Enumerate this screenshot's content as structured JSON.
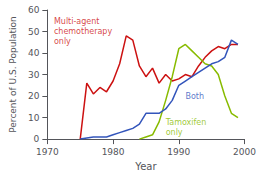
{
  "chart_data": {
    "type": "line",
    "xlabel": "Year",
    "ylabel": "Percent of U.S. Population",
    "xlim": [
      1970,
      2000
    ],
    "ylim": [
      0,
      60
    ],
    "xticks": [
      1970,
      1980,
      1990,
      2000
    ],
    "yticks": [
      0,
      10,
      20,
      30,
      40,
      50,
      60
    ],
    "grid": false,
    "series": [
      {
        "color": "#cc1111",
        "x": [
          1975,
          1976,
          1977,
          1978,
          1979,
          1980,
          1981,
          1982,
          1983,
          1984,
          1985,
          1986,
          1987,
          1988,
          1989,
          1990,
          1991,
          1992,
          1993,
          1994,
          1995,
          1996,
          1997,
          1998,
          1999
        ],
        "values": [
          0,
          26,
          21,
          24,
          22,
          27,
          35,
          48,
          46,
          34,
          29,
          33,
          26,
          30,
          27,
          28,
          30,
          29,
          34,
          38,
          41,
          43,
          42,
          44,
          44
        ]
      },
      {
        "color": "#88bb00",
        "x": [
          1984,
          1985,
          1986,
          1987,
          1988,
          1989,
          1990,
          1991,
          1992,
          1993,
          1994,
          1995,
          1996,
          1997,
          1998,
          1999
        ],
        "values": [
          0,
          1,
          2,
          8,
          18,
          29,
          42,
          44,
          41,
          38,
          35,
          34,
          30,
          20,
          12,
          10
        ]
      },
      {
        "color": "#3355bb",
        "x": [
          1975,
          1976,
          1977,
          1978,
          1979,
          1980,
          1981,
          1982,
          1983,
          1984,
          1985,
          1986,
          1987,
          1988,
          1989,
          1990,
          1991,
          1992,
          1993,
          1994,
          1995,
          1996,
          1997,
          1998,
          1999
        ],
        "values": [
          0,
          0.5,
          1,
          1,
          1,
          2,
          3,
          4,
          5,
          7,
          12,
          12,
          12,
          14,
          18,
          25,
          27,
          29,
          31,
          33,
          35,
          36,
          38,
          46,
          44
        ]
      }
    ],
    "annotations": [
      {
        "x": 1971,
        "y": 57,
        "text": "Multi-agent\nchemotherapy\nonly",
        "color": "#cc1111"
      },
      {
        "x": 1991,
        "y": 22,
        "text": "Both",
        "color": "#3355bb"
      },
      {
        "x": 1988,
        "y": 10,
        "text": "Tamoxifen\nonly",
        "color": "#88bb00"
      }
    ]
  }
}
